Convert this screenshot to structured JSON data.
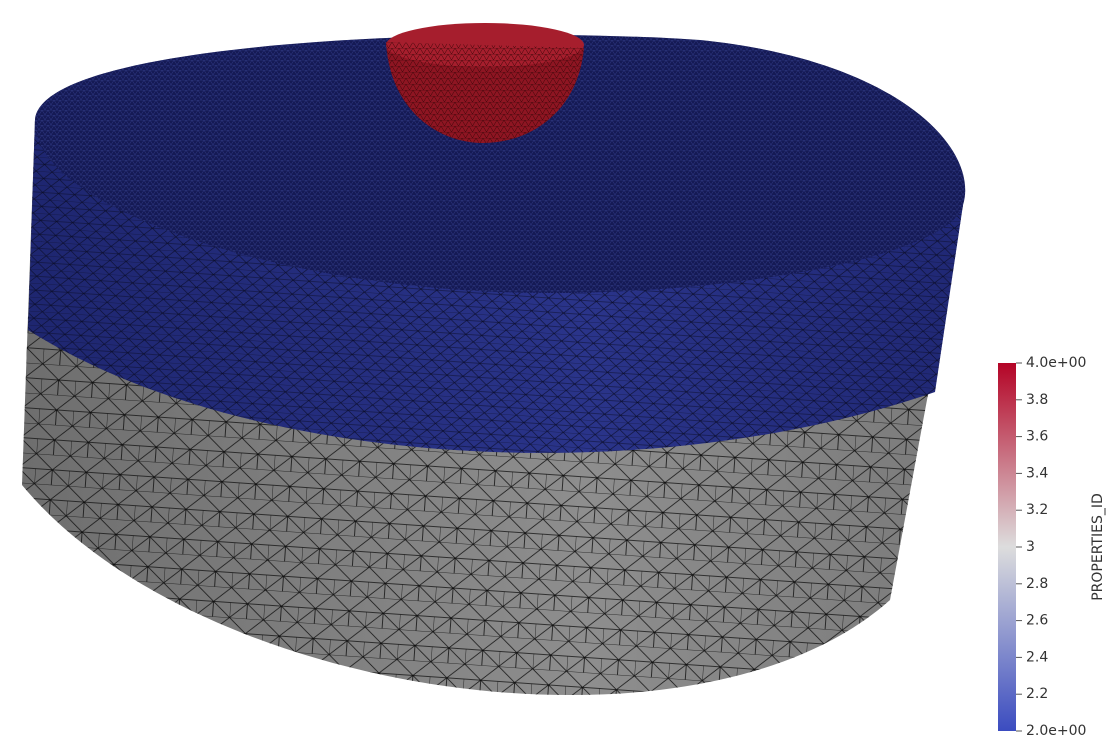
{
  "colorbar": {
    "title": "PROPERTIES_ID",
    "range": [
      2,
      4
    ],
    "ticks": [
      {
        "value": 4,
        "label": "4.0e+00"
      },
      3.8,
      3.6,
      3.4,
      3.2,
      3,
      2.8,
      2.6,
      2.4,
      2.2,
      {
        "value": 2,
        "label": "2.0e+00"
      }
    ],
    "colors": [
      "#3b4cc0",
      "#dddddd",
      "#b40426"
    ]
  }
}
